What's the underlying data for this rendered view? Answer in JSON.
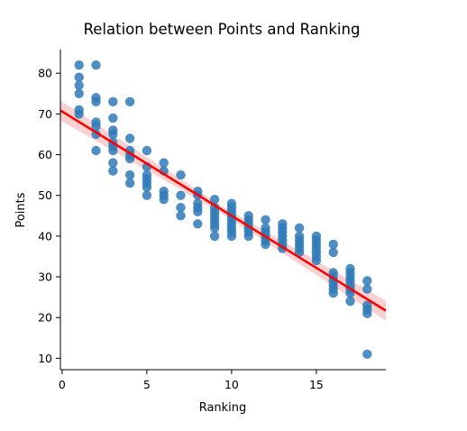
{
  "chart_data": {
    "type": "scatter",
    "title": "Relation between Points and Ranking",
    "xlabel": "Ranking",
    "ylabel": "Points",
    "xlim": [
      -0.1,
      19.1
    ],
    "ylim": [
      7.2,
      85.8
    ],
    "xticks": [
      0,
      5,
      10,
      15
    ],
    "yticks": [
      10,
      20,
      30,
      40,
      50,
      60,
      70,
      80
    ],
    "grid": false,
    "legend": "none",
    "colors": {
      "points": "#2f7ab7",
      "fit_line": "#ff0000",
      "ci_band": "#f7c6c6"
    },
    "series": [
      {
        "points": [
          [
            1,
            82
          ],
          [
            1,
            79
          ],
          [
            1,
            77
          ],
          [
            1,
            75
          ],
          [
            1,
            71
          ],
          [
            1,
            70
          ],
          [
            2,
            82
          ],
          [
            2,
            74
          ],
          [
            2,
            73
          ],
          [
            2,
            68
          ],
          [
            2,
            67
          ],
          [
            2,
            65
          ],
          [
            2,
            61
          ],
          [
            3,
            73
          ],
          [
            3,
            69
          ],
          [
            3,
            66
          ],
          [
            3,
            65
          ],
          [
            3,
            63
          ],
          [
            3,
            62
          ],
          [
            3,
            61
          ],
          [
            3,
            58
          ],
          [
            3,
            56
          ],
          [
            4,
            73
          ],
          [
            4,
            64
          ],
          [
            4,
            61
          ],
          [
            4,
            60
          ],
          [
            4,
            59
          ],
          [
            4,
            55
          ],
          [
            4,
            53
          ],
          [
            5,
            61
          ],
          [
            5,
            57
          ],
          [
            5,
            55
          ],
          [
            5,
            54
          ],
          [
            5,
            53
          ],
          [
            5,
            52
          ],
          [
            5,
            50
          ],
          [
            6,
            58
          ],
          [
            6,
            56
          ],
          [
            6,
            51
          ],
          [
            6,
            50
          ],
          [
            6,
            49
          ],
          [
            7,
            55
          ],
          [
            7,
            50
          ],
          [
            7,
            47
          ],
          [
            7,
            45
          ],
          [
            8,
            51
          ],
          [
            8,
            50
          ],
          [
            8,
            48
          ],
          [
            8,
            47
          ],
          [
            8,
            46
          ],
          [
            8,
            43
          ],
          [
            9,
            49
          ],
          [
            9,
            47
          ],
          [
            9,
            46
          ],
          [
            9,
            45
          ],
          [
            9,
            44
          ],
          [
            9,
            43
          ],
          [
            9,
            42
          ],
          [
            9,
            40
          ],
          [
            10,
            48
          ],
          [
            10,
            47
          ],
          [
            10,
            46
          ],
          [
            10,
            45
          ],
          [
            10,
            44
          ],
          [
            10,
            43
          ],
          [
            10,
            42
          ],
          [
            10,
            41
          ],
          [
            10,
            40
          ],
          [
            11,
            45
          ],
          [
            11,
            44
          ],
          [
            11,
            43
          ],
          [
            11,
            42
          ],
          [
            11,
            41
          ],
          [
            11,
            40
          ],
          [
            12,
            44
          ],
          [
            12,
            42
          ],
          [
            12,
            41
          ],
          [
            12,
            40
          ],
          [
            12,
            39
          ],
          [
            12,
            38
          ],
          [
            13,
            43
          ],
          [
            13,
            42
          ],
          [
            13,
            41
          ],
          [
            13,
            40
          ],
          [
            13,
            39
          ],
          [
            13,
            38
          ],
          [
            13,
            37
          ],
          [
            14,
            42
          ],
          [
            14,
            40
          ],
          [
            14,
            39
          ],
          [
            14,
            38
          ],
          [
            14,
            37
          ],
          [
            14,
            36
          ],
          [
            15,
            40
          ],
          [
            15,
            39
          ],
          [
            15,
            38
          ],
          [
            15,
            37
          ],
          [
            15,
            36
          ],
          [
            15,
            35
          ],
          [
            15,
            34
          ],
          [
            16,
            38
          ],
          [
            16,
            36
          ],
          [
            16,
            31
          ],
          [
            16,
            30
          ],
          [
            16,
            29
          ],
          [
            16,
            28
          ],
          [
            16,
            27
          ],
          [
            16,
            26
          ],
          [
            17,
            32
          ],
          [
            17,
            31
          ],
          [
            17,
            30
          ],
          [
            17,
            29
          ],
          [
            17,
            28
          ],
          [
            17,
            27
          ],
          [
            17,
            26
          ],
          [
            17,
            24
          ],
          [
            18,
            29
          ],
          [
            18,
            27
          ],
          [
            18,
            23
          ],
          [
            18,
            22
          ],
          [
            18,
            21
          ],
          [
            18,
            11
          ]
        ]
      }
    ],
    "fit_line": {
      "slope": -2.56,
      "intercept": 70.6
    }
  }
}
